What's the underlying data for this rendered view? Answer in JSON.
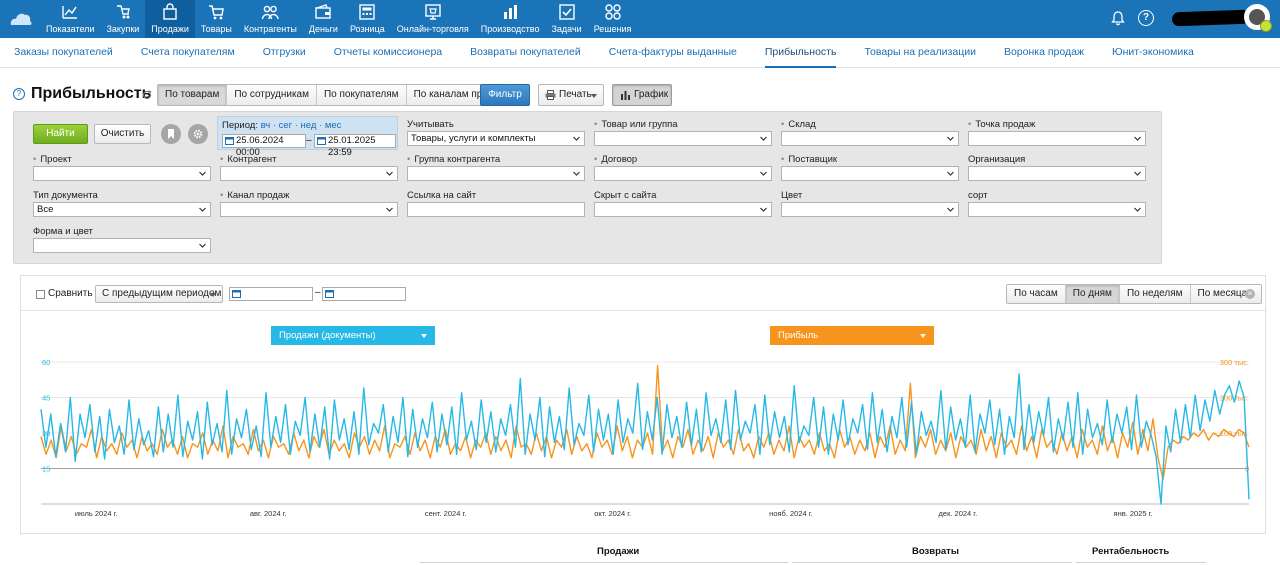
{
  "topnav": {
    "items": [
      {
        "label": "Показатели",
        "icon": "chart-line-icon"
      },
      {
        "label": "Закупки",
        "icon": "hand-cart-icon"
      },
      {
        "label": "Продажи",
        "icon": "bag-icon",
        "active": true
      },
      {
        "label": "Товары",
        "icon": "cart-icon"
      },
      {
        "label": "Контрагенты",
        "icon": "people-icon"
      },
      {
        "label": "Деньги",
        "icon": "wallet-icon"
      },
      {
        "label": "Розница",
        "icon": "register-icon"
      },
      {
        "label": "Онлайн-торговля",
        "icon": "online-store-icon"
      },
      {
        "label": "Производство",
        "icon": "factory-icon"
      },
      {
        "label": "Задачи",
        "icon": "check-task-icon"
      },
      {
        "label": "Решения",
        "icon": "apps-icon"
      }
    ]
  },
  "subnav": {
    "items": [
      {
        "label": "Заказы покупателей"
      },
      {
        "label": "Счета покупателям"
      },
      {
        "label": "Отгрузки"
      },
      {
        "label": "Отчеты комиссионера"
      },
      {
        "label": "Возвраты покупателей"
      },
      {
        "label": "Счета-фактуры выданные"
      },
      {
        "label": "Прибыльность",
        "active": true
      },
      {
        "label": "Товары на реализации"
      },
      {
        "label": "Воронка продаж"
      },
      {
        "label": "Юнит-экономика"
      }
    ]
  },
  "header": {
    "title": "Прибыльность",
    "view_tabs": [
      "По товарам",
      "По сотрудникам",
      "По покупателям",
      "По каналам продаж"
    ],
    "active_tab": 0,
    "filter_label": "Фильтр",
    "print_label": "Печать",
    "chart_label": "График"
  },
  "filters": {
    "find_label": "Найти",
    "clear_label": "Очистить",
    "period": {
      "label": "Период:",
      "shortcuts": "вч · сег · нед · мес",
      "from": "25.06.2024 00:00",
      "to": "25.01.2025 23:59"
    },
    "consider": {
      "label": "Учитывать",
      "value": "Товары, услуги и комплекты"
    },
    "fields": [
      {
        "label": "Товар или группа",
        "value": ""
      },
      {
        "label": "Склад",
        "value": ""
      },
      {
        "label": "Точка продаж",
        "value": ""
      },
      {
        "label": "Проект",
        "value": ""
      },
      {
        "label": "Контрагент",
        "value": ""
      },
      {
        "label": "Группа контрагента",
        "value": ""
      },
      {
        "label": "Договор",
        "value": ""
      },
      {
        "label": "Поставщик",
        "value": ""
      },
      {
        "label": "Организация",
        "value": ""
      },
      {
        "label": "Тип документа",
        "value": "Все"
      },
      {
        "label": "Канал продаж",
        "value": ""
      },
      {
        "label": "Ссылка на сайт",
        "value": ""
      },
      {
        "label": "Скрыт с сайта",
        "value": ""
      },
      {
        "label": "Цвет",
        "value": ""
      },
      {
        "label": "сорт",
        "value": ""
      },
      {
        "label": "Форма и цвет",
        "value": ""
      }
    ]
  },
  "chart_panel": {
    "compare_label": "Сравнить",
    "compare_period": "С предыдущим периодом",
    "granularity": [
      "По часам",
      "По дням",
      "По неделям",
      "По месяцам"
    ],
    "active_granularity": 1,
    "series_left_label": "Продажи (документы)",
    "series_right_label": "Прибыль",
    "colors": {
      "sales": "#27b9e6",
      "profit": "#f7941d"
    }
  },
  "chart_data": {
    "type": "line",
    "x_start": "2024-06-25",
    "x_end": "2025-01-25",
    "x_ticks": [
      "июль 2024 г.",
      "авг. 2024 г.",
      "сент. 2024 г.",
      "окт. 2024 г.",
      "нояб. 2024 г.",
      "дек. 2024 г.",
      "янв. 2025 г."
    ],
    "y_left": {
      "ticks": [
        "60",
        "45",
        "30",
        "15"
      ],
      "range": [
        0,
        60
      ]
    },
    "y_right": {
      "ticks": [
        "300 тыс.",
        "200 тыс.",
        "100 тыс.",
        "0"
      ],
      "range": [
        -100000,
        300000
      ]
    },
    "series": [
      {
        "name": "Продажи (документы)",
        "axis": "left",
        "values": [
          40,
          24,
          38,
          20,
          34,
          22,
          45,
          18,
          38,
          28,
          42,
          22,
          37,
          19,
          40,
          26,
          33,
          21,
          44,
          23,
          36,
          25,
          31,
          20,
          41,
          22,
          38,
          24,
          46,
          20,
          35,
          27,
          39,
          19,
          43,
          25,
          34,
          22,
          48,
          21,
          36,
          28,
          40,
          23,
          33,
          20,
          47,
          24,
          37,
          26,
          42,
          21,
          35,
          29,
          45,
          22,
          38,
          24,
          41,
          19,
          44,
          27,
          36,
          23,
          39,
          21,
          49,
          25,
          34,
          30,
          42,
          22,
          37,
          26,
          45,
          20,
          40,
          24,
          36,
          28,
          43,
          22,
          38,
          25,
          41,
          21,
          47,
          27,
          35,
          23,
          44,
          26,
          39,
          22,
          36,
          29,
          42,
          24,
          53,
          21,
          38,
          27,
          45,
          20,
          41,
          26,
          37,
          23,
          49,
          25,
          34,
          29,
          46,
          22,
          40,
          27,
          38,
          21,
          44,
          26,
          36,
          30,
          51,
          23,
          39,
          27,
          45,
          21,
          42,
          28,
          37,
          24,
          43,
          25,
          40,
          22,
          47,
          29,
          36,
          26,
          44,
          23,
          48,
          27,
          35,
          30,
          42,
          21,
          46,
          25,
          39,
          28,
          37,
          22,
          50,
          26,
          33,
          29,
          45,
          24,
          41,
          21,
          38,
          27,
          44,
          25,
          36,
          30,
          42,
          23,
          47,
          26,
          40,
          22,
          37,
          28,
          45,
          24,
          43,
          21,
          39,
          29,
          35,
          26,
          48,
          23,
          41,
          27,
          36,
          24,
          46,
          22,
          38,
          30,
          44,
          25,
          40,
          21,
          37,
          28,
          55,
          23,
          42,
          26,
          39,
          29,
          45,
          22,
          36,
          27,
          43,
          24,
          47,
          21,
          40,
          28,
          34,
          25,
          44,
          26,
          38,
          30,
          41,
          23,
          46,
          24,
          35,
          29,
          20,
          0,
          33,
          22,
          40,
          26,
          42,
          28,
          46,
          31,
          44,
          35,
          48,
          38,
          46,
          50,
          43,
          52,
          45,
          2
        ]
      },
      {
        "name": "Прибыль",
        "axis": "right",
        "values": [
          90000,
          40000,
          80000,
          30000,
          120000,
          50000,
          90000,
          40000,
          70000,
          60000,
          110000,
          30000,
          90000,
          50000,
          70000,
          40000,
          100000,
          60000,
          80000,
          30000,
          90000,
          50000,
          70000,
          40000,
          110000,
          60000,
          80000,
          40000,
          90000,
          30000,
          70000,
          60000,
          100000,
          40000,
          80000,
          50000,
          120000,
          30000,
          90000,
          60000,
          70000,
          40000,
          110000,
          50000,
          80000,
          30000,
          90000,
          60000,
          70000,
          40000,
          100000,
          50000,
          80000,
          30000,
          90000,
          60000,
          110000,
          40000,
          80000,
          50000,
          70000,
          30000,
          100000,
          60000,
          90000,
          40000,
          80000,
          50000,
          120000,
          30000,
          70000,
          60000,
          90000,
          40000,
          100000,
          50000,
          80000,
          30000,
          90000,
          60000,
          110000,
          40000,
          70000,
          50000,
          90000,
          30000,
          80000,
          60000,
          100000,
          40000,
          90000,
          50000,
          80000,
          30000,
          120000,
          60000,
          70000,
          40000,
          100000,
          50000,
          90000,
          30000,
          80000,
          60000,
          110000,
          40000,
          90000,
          50000,
          70000,
          30000,
          100000,
          60000,
          80000,
          40000,
          120000,
          50000,
          90000,
          30000,
          80000,
          60000,
          100000,
          40000,
          290000,
          50000,
          80000,
          30000,
          90000,
          60000,
          110000,
          40000,
          80000,
          50000,
          90000,
          30000,
          100000,
          60000,
          80000,
          40000,
          110000,
          50000,
          70000,
          30000,
          90000,
          60000,
          100000,
          40000,
          80000,
          50000,
          120000,
          30000,
          90000,
          60000,
          80000,
          40000,
          100000,
          50000,
          70000,
          30000,
          110000,
          60000,
          90000,
          40000,
          80000,
          50000,
          100000,
          30000,
          90000,
          60000,
          120000,
          40000,
          80000,
          50000,
          240000,
          30000,
          90000,
          60000,
          110000,
          40000,
          80000,
          50000,
          100000,
          30000,
          90000,
          60000,
          80000,
          40000,
          110000,
          50000,
          90000,
          30000,
          100000,
          60000,
          80000,
          40000,
          120000,
          50000,
          90000,
          30000,
          110000,
          60000,
          80000,
          40000,
          100000,
          50000,
          90000,
          30000,
          110000,
          60000,
          80000,
          40000,
          120000,
          50000,
          90000,
          30000,
          100000,
          60000,
          130000,
          40000,
          110000,
          50000,
          140000,
          30000,
          -30000,
          60000,
          80000,
          70000,
          90000,
          80000,
          100000,
          90000,
          110000,
          80000,
          100000,
          90000,
          110000,
          100000,
          90000,
          110000,
          100000,
          60000
        ]
      }
    ]
  },
  "table_header": {
    "sales": "Продажи",
    "returns": "Возвраты",
    "profitability": "Рентабельность"
  }
}
